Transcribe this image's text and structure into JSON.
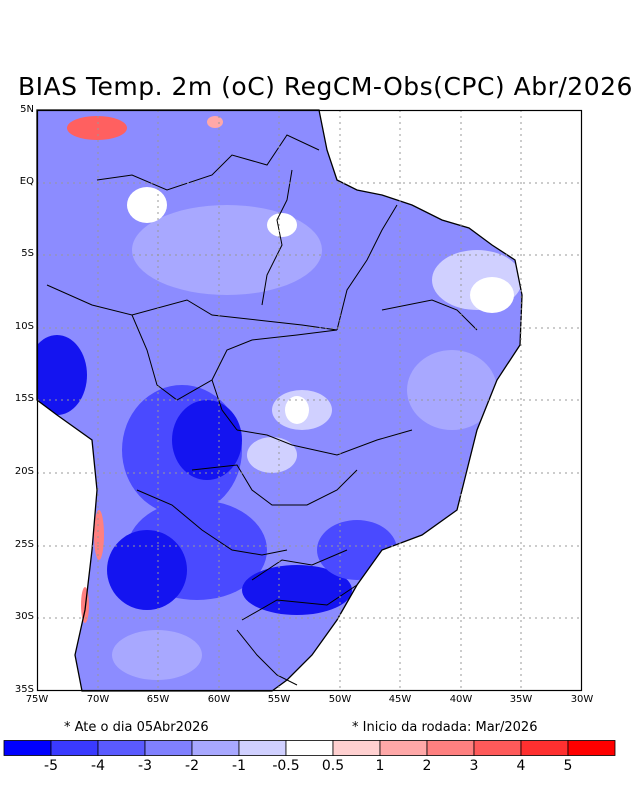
{
  "title": "BIAS Temp. 2m (oC) RegCM-Obs(CPC) Abr/2026",
  "lat_labels": [
    "5N",
    "EQ",
    "5S",
    "10S",
    "15S",
    "20S",
    "25S",
    "30S",
    "35S"
  ],
  "lon_labels": [
    "75W",
    "70W",
    "65W",
    "60W",
    "55W",
    "50W",
    "45W",
    "40W",
    "35W",
    "30W"
  ],
  "note_left": "* Ate o dia 05Abr2026",
  "note_right": "* Inicio da rodada: Mar/2026",
  "colorbar": {
    "colors": [
      "#0000ff",
      "#3a3aff",
      "#5a5aff",
      "#8080ff",
      "#a8a8ff",
      "#d0d0ff",
      "#ffffff",
      "#ffd0d0",
      "#ffa8a8",
      "#ff8080",
      "#ff5a5a",
      "#ff3030",
      "#ff0000"
    ],
    "labels": [
      "-5",
      "-4",
      "-3",
      "-2",
      "-1",
      "-0.5",
      "0.5",
      "1",
      "2",
      "3",
      "4",
      "5"
    ]
  },
  "map_colors": {
    "land_base": "#8c8cff",
    "very_cold": "#1414f0",
    "cold": "#4a4aff",
    "mid": "#7070ff",
    "light": "#a8a8ff",
    "lighter": "#d0d0ff",
    "neutral": "#ffffff",
    "warm": "#ffa8a8",
    "hot": "#ff6060"
  }
}
